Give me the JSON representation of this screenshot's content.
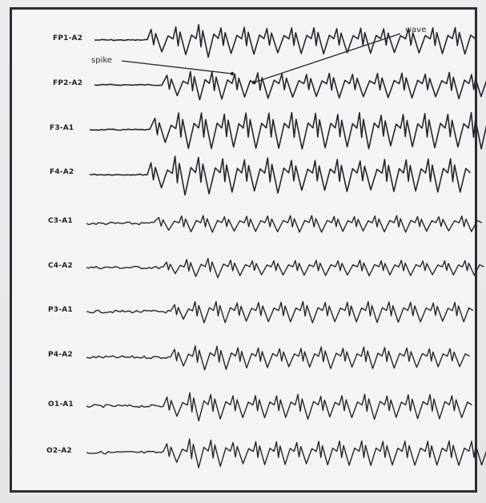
{
  "channels": [
    {
      "label": "FP1-A2"
    },
    {
      "label": "FP2-A2"
    },
    {
      "label": "F3-A1"
    },
    {
      "label": "F4-A2"
    },
    {
      "label": "C3-A1"
    },
    {
      "label": "C4-A2"
    },
    {
      "label": "P3-A1"
    },
    {
      "label": "P4-A2"
    },
    {
      "label": "O1-A1"
    },
    {
      "label": "O2-A2"
    }
  ],
  "annotations": {
    "spike_label": "spike",
    "wave_label": "wave"
  },
  "colors": {
    "trace": "#24262e",
    "border": "#2b2d35",
    "background": "#f4f4f6"
  }
}
